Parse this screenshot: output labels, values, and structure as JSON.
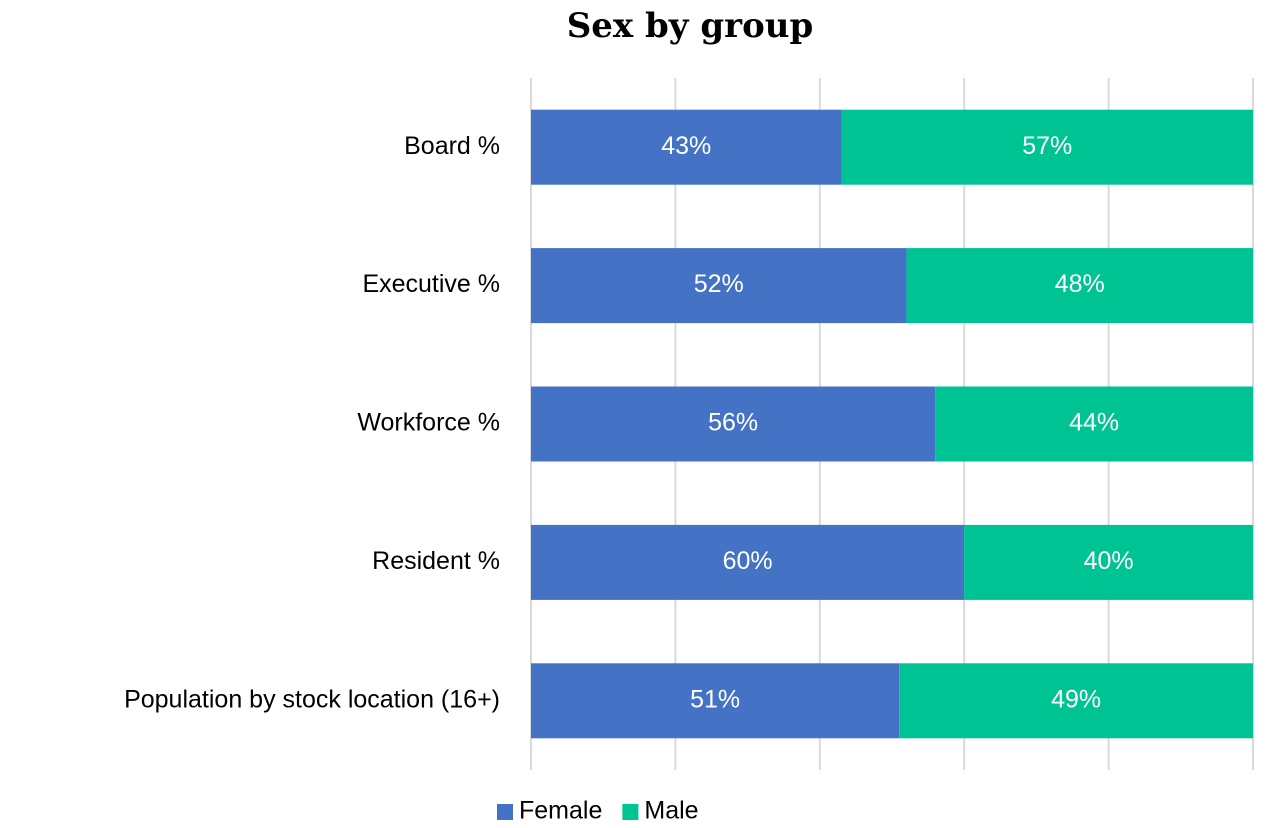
{
  "chart_data": {
    "type": "stacked-bar-horizontal",
    "title": "Sex by group",
    "categories": [
      "Board %",
      "Executive %",
      "Workforce %",
      "Resident %",
      "Population by stock location (16+)"
    ],
    "series": [
      {
        "name": "Female",
        "color": "#4472c4",
        "values": [
          43,
          52,
          56,
          60,
          51
        ],
        "value_labels": [
          "43%",
          "52%",
          "56%",
          "60%",
          "51%"
        ]
      },
      {
        "name": "Male",
        "color": "#00c393",
        "values": [
          57,
          48,
          44,
          40,
          49
        ],
        "value_labels": [
          "57%",
          "48%",
          "44%",
          "40%",
          "49%"
        ]
      }
    ],
    "xlim": [
      0,
      100
    ],
    "xticks": [
      0,
      20,
      40,
      60,
      80,
      100
    ],
    "grid": true,
    "legend": "bottom"
  }
}
